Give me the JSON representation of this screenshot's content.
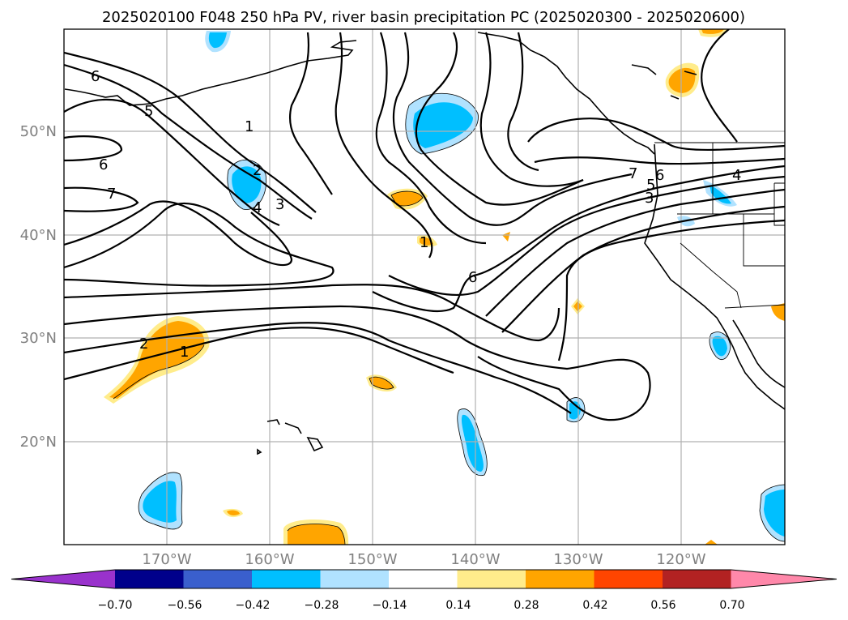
{
  "title": "2025020100 F048 250 hPa PV, river basin precipitation PC (2025020300 - 2025020600)",
  "map": {
    "lon_labels": [
      "170°W",
      "160°W",
      "150°W",
      "140°W",
      "130°W",
      "120°W"
    ],
    "lat_labels": [
      "50°N",
      "40°N",
      "30°N",
      "20°N"
    ],
    "contour_labels": [
      "6",
      "5",
      "1",
      "6",
      "7",
      "2",
      "3",
      "4",
      "1",
      "2",
      "1",
      "6",
      "7",
      "6",
      "5",
      "4",
      "3"
    ]
  },
  "colorbar": {
    "labels": [
      "−0.70",
      "−0.56",
      "−0.42",
      "−0.28",
      "−0.14",
      "0.14",
      "0.28",
      "0.42",
      "0.56",
      "0.70"
    ],
    "colors": [
      "#9932cc",
      "#00008b",
      "#3a5fcd",
      "#00bfff",
      "#b0e2ff",
      "#ffffff",
      "#ffec8b",
      "#ffa500",
      "#ff4500",
      "#b22222",
      "#ff88aa"
    ]
  }
}
